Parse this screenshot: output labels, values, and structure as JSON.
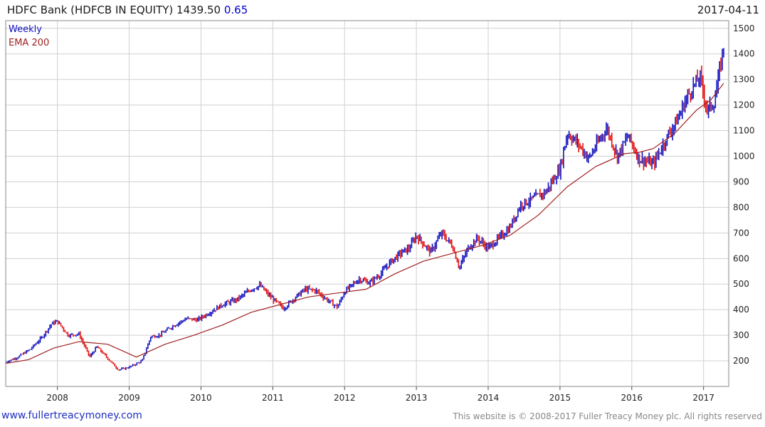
{
  "header": {
    "title": "HDFC Bank (HDFCB IN EQUITY) 1439.50",
    "change": "0.65",
    "date": "2017-04-11"
  },
  "footer": {
    "left": "www.fullertreacymoney.com",
    "right": "This website is © 2008-2017 Fuller Treacy Money plc. All rights reserved"
  },
  "colors": {
    "up": "#1010c0",
    "down": "#e01010",
    "ema": "#a02020",
    "grid": "#d0d0d0"
  },
  "chart_data": {
    "type": "line",
    "frequency": "Weekly",
    "legend": [
      "Weekly",
      "EMA 200"
    ],
    "legend_placement": "top-left",
    "ylim": [
      100,
      1530
    ],
    "yticks": [
      200,
      300,
      400,
      500,
      600,
      700,
      800,
      900,
      1000,
      1100,
      1200,
      1300,
      1400,
      1500
    ],
    "xlim": [
      2007.28,
      2017.35
    ],
    "xticks": [
      "2008",
      "2009",
      "2010",
      "2011",
      "2012",
      "2013",
      "2014",
      "2015",
      "2016",
      "2017"
    ],
    "grid": true,
    "series": [
      {
        "name": "Weekly",
        "x": [
          2007.28,
          2007.45,
          2007.62,
          2007.78,
          2007.92,
          2008.0,
          2008.15,
          2008.3,
          2008.45,
          2008.55,
          2008.7,
          2008.85,
          2009.0,
          2009.18,
          2009.3,
          2009.42,
          2009.6,
          2009.8,
          2009.95,
          2010.1,
          2010.3,
          2010.5,
          2010.7,
          2010.82,
          2010.95,
          2011.15,
          2011.3,
          2011.45,
          2011.6,
          2011.75,
          2011.9,
          2012.0,
          2012.2,
          2012.35,
          2012.5,
          2012.65,
          2012.8,
          2012.9,
          2013.0,
          2013.2,
          2013.35,
          2013.5,
          2013.6,
          2013.72,
          2013.85,
          2014.0,
          2014.15,
          2014.3,
          2014.45,
          2014.6,
          2014.8,
          2015.0,
          2015.1,
          2015.25,
          2015.4,
          2015.5,
          2015.65,
          2015.8,
          2015.95,
          2016.1,
          2016.3,
          2016.5,
          2016.65,
          2016.75,
          2016.85,
          2016.95,
          2017.05,
          2017.15,
          2017.28
        ],
        "values": [
          195,
          215,
          245,
          290,
          345,
          355,
          300,
          305,
          215,
          255,
          210,
          165,
          175,
          200,
          295,
          300,
          335,
          365,
          360,
          385,
          420,
          440,
          480,
          495,
          455,
          405,
          445,
          480,
          475,
          440,
          410,
          470,
          520,
          505,
          540,
          590,
          625,
          640,
          690,
          625,
          700,
          650,
          565,
          640,
          680,
          640,
          680,
          720,
          810,
          830,
          860,
          950,
          1090,
          1050,
          990,
          1040,
          1110,
          1000,
          1080,
          990,
          970,
          1080,
          1150,
          1220,
          1270,
          1310,
          1180,
          1210,
          1430
        ]
      },
      {
        "name": "EMA 200",
        "x": [
          2007.28,
          2007.6,
          2007.95,
          2008.3,
          2008.7,
          2009.1,
          2009.5,
          2009.9,
          2010.3,
          2010.7,
          2011.1,
          2011.5,
          2011.9,
          2012.3,
          2012.7,
          2013.1,
          2013.5,
          2013.9,
          2014.3,
          2014.7,
          2015.1,
          2015.5,
          2015.9,
          2016.1,
          2016.3,
          2016.6,
          2016.9,
          2017.1,
          2017.28
        ],
        "values": [
          190,
          205,
          250,
          275,
          265,
          215,
          265,
          300,
          340,
          390,
          420,
          450,
          465,
          480,
          540,
          590,
          620,
          650,
          690,
          770,
          880,
          960,
          1010,
          1015,
          1030,
          1090,
          1180,
          1220,
          1285
        ]
      }
    ]
  }
}
